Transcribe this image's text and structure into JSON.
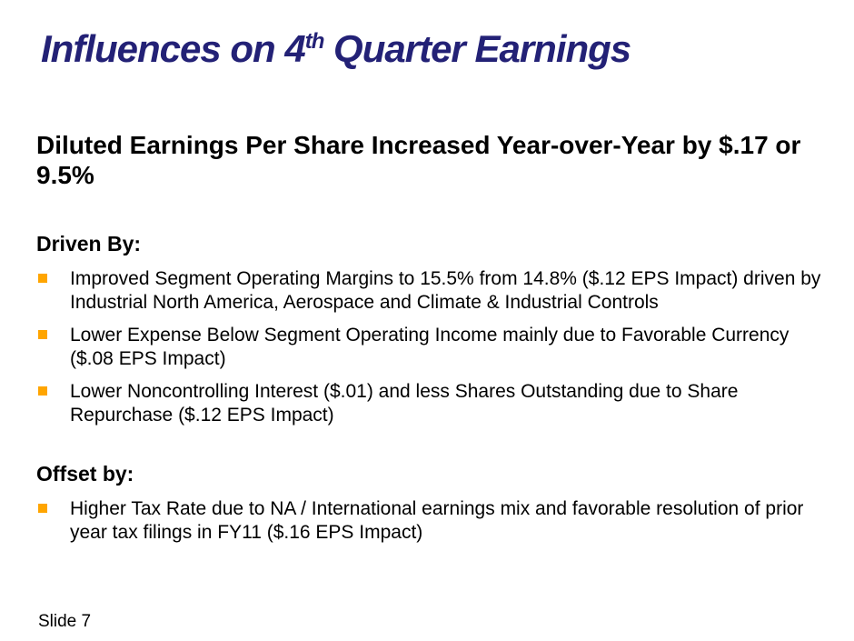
{
  "title": {
    "part1": "Influences on 4",
    "sup": "th",
    "part2": " Quarter Earnings"
  },
  "subtitle": "Diluted Earnings Per Share Increased Year-over-Year by $.17 or 9.5%",
  "sections": [
    {
      "heading": "Driven By:",
      "bullets": [
        "Improved Segment Operating Margins to 15.5% from 14.8% ($.12 EPS Impact) driven by Industrial North America, Aerospace and Climate & Industrial Controls",
        "Lower Expense Below Segment Operating Income mainly due to Favorable Currency ($.08 EPS Impact)",
        "Lower Noncontrolling Interest ($.01) and less Shares Outstanding due to Share Repurchase ($.12 EPS Impact)"
      ]
    },
    {
      "heading": "Offset by:",
      "bullets": [
        "Higher Tax Rate due to NA / International earnings mix and favorable resolution of prior year tax filings in FY11 ($.16 EPS Impact)"
      ]
    }
  ],
  "footer": {
    "slide_label": "Slide 7"
  },
  "colors": {
    "title_navy": "#232176",
    "bullet_orange": "#FFA500",
    "body_text": "#000000"
  }
}
